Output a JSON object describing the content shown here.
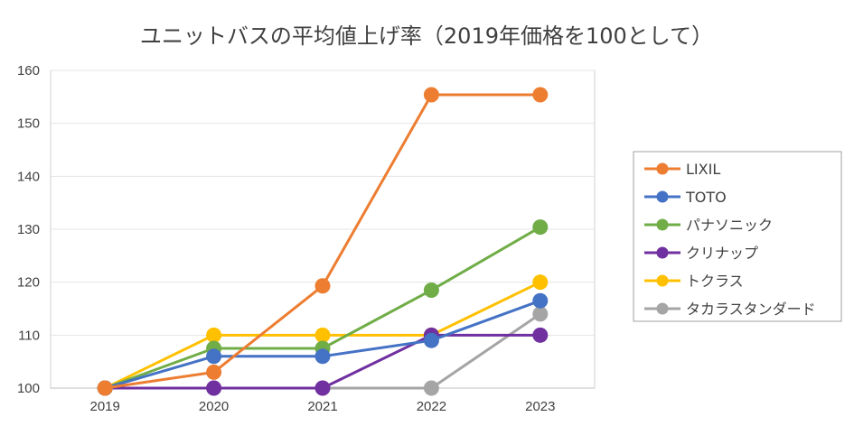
{
  "chart_data": {
    "type": "line",
    "title": "ユニットバスの平均値上げ率（2019年価格を100として）",
    "xlabel": "",
    "ylabel": "",
    "x": [
      "2019",
      "2020",
      "2021",
      "2022",
      "2023"
    ],
    "ylim": [
      100,
      160
    ],
    "yticks": [
      100,
      110,
      120,
      130,
      140,
      150,
      160
    ],
    "grid": true,
    "legend_position": "right",
    "series": [
      {
        "name": "LIXIL",
        "color": "#ED7D31",
        "values": [
          100,
          103,
          119.3,
          155.4,
          155.4
        ]
      },
      {
        "name": "TOTO",
        "color": "#4472C4",
        "values": [
          100,
          106,
          106,
          109,
          116.5
        ]
      },
      {
        "name": "パナソニック",
        "color": "#70AD47",
        "values": [
          100,
          107.5,
          107.5,
          118.5,
          130.4
        ]
      },
      {
        "name": "クリナップ",
        "color": "#7030A0",
        "values": [
          100,
          100,
          100,
          110,
          110
        ]
      },
      {
        "name": "トクラス",
        "color": "#FFC000",
        "values": [
          100,
          110,
          110,
          110,
          120
        ]
      },
      {
        "name": "タカラスタンダード",
        "color": "#A5A5A5",
        "values": [
          100,
          100,
          100,
          100,
          114
        ]
      }
    ]
  }
}
